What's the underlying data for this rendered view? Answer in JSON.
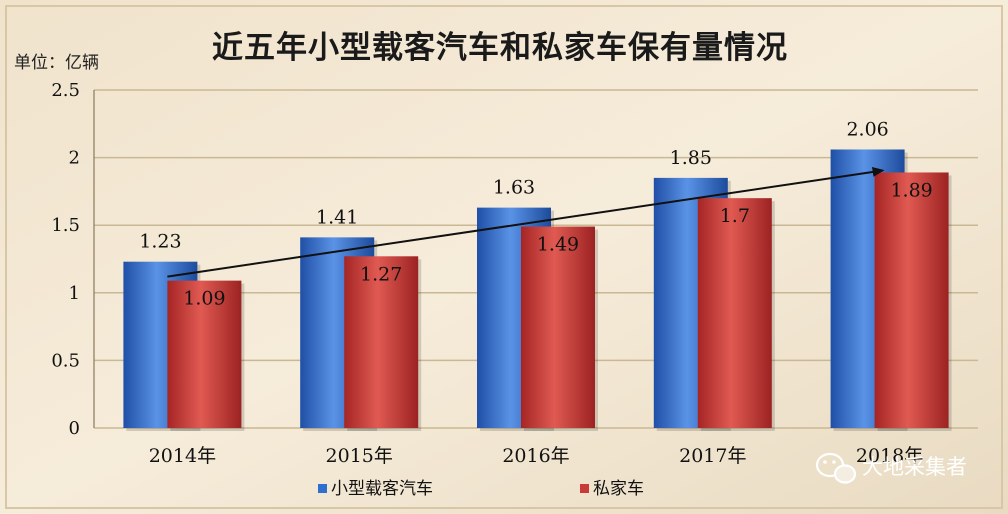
{
  "chart_data": {
    "type": "bar",
    "title": "近五年小型载客汽车和私家车保有量情况",
    "unit_label": "单位：亿辆",
    "categories": [
      "2014年",
      "2015年",
      "2016年",
      "2017年",
      "2018年"
    ],
    "series": [
      {
        "name": "小型载客汽车",
        "values": [
          1.23,
          1.41,
          1.63,
          1.85,
          2.06
        ],
        "color": "#2f6fd0"
      },
      {
        "name": "私家车",
        "values": [
          1.09,
          1.27,
          1.49,
          1.7,
          1.89
        ],
        "color": "#c93a3a"
      }
    ],
    "data_labels": [
      [
        "1.23",
        "1.41",
        "1.63",
        "1.85",
        "2.06"
      ],
      [
        "1.09",
        "1.27",
        "1.49",
        "1.7",
        "1.89"
      ]
    ],
    "ylim": [
      0,
      2.5
    ],
    "yticks": [
      "0",
      "0.5",
      "1",
      "1.5",
      "2",
      "2.5"
    ],
    "grid": true,
    "legend_position": "bottom",
    "trend_arrow": {
      "from": [
        0,
        1.09
      ],
      "to": [
        4,
        1.89
      ]
    }
  },
  "watermark": {
    "text": "大地采集者",
    "icon": "wechat-icon"
  }
}
